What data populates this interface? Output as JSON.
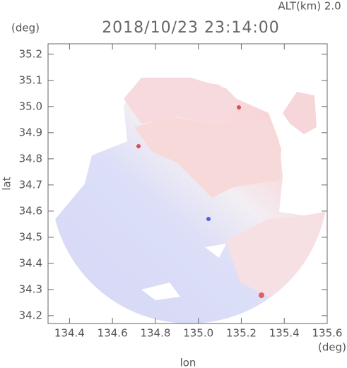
{
  "chart_data": {
    "type": "radar-field",
    "title": "2018/10/23 23:14:00",
    "subtitle": "ALT(km) 2.0",
    "x_label": "lon",
    "y_label": "lat",
    "x_unit": "(deg)",
    "y_unit": "(deg)",
    "xlim": [
      134.3,
      135.6
    ],
    "ylim": [
      34.17,
      35.24
    ],
    "xticks": [
      134.4,
      134.6,
      134.8,
      {
        "value": 135.0,
        "label": "135.0"
      },
      135.2,
      135.4,
      135.6
    ],
    "yticks": [
      34.2,
      34.3,
      34.4,
      34.5,
      34.6,
      34.7,
      34.8,
      34.9,
      {
        "value": 35.0,
        "label": "35.0"
      },
      35.1,
      35.2
    ]
  }
}
